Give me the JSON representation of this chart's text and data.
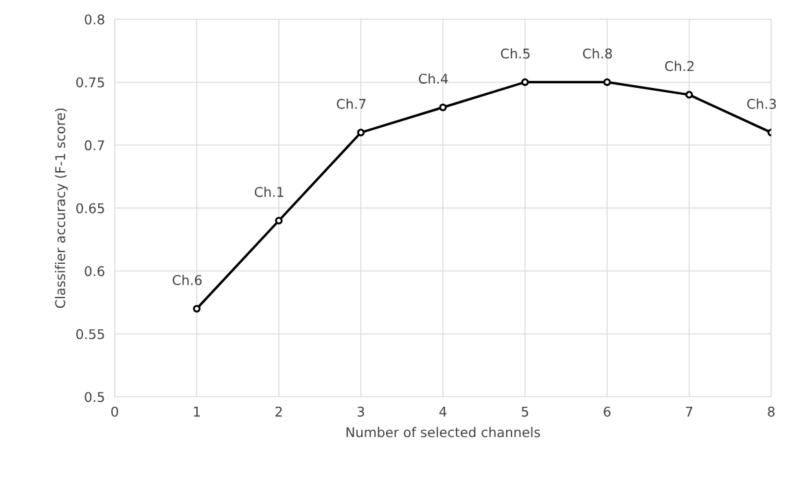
{
  "chart_data": {
    "type": "line",
    "xlabel": "Number of selected channels",
    "ylabel": "Classifier accuracy (F-1 score)",
    "x": [
      1,
      2,
      3,
      4,
      5,
      6,
      7,
      8
    ],
    "series": [
      {
        "color": "#000000",
        "values": [
          0.57,
          0.64,
          0.71,
          0.73,
          0.75,
          0.75,
          0.74,
          0.71
        ]
      }
    ],
    "xlim": [
      0,
      8
    ],
    "xticks": [
      0,
      1,
      2,
      3,
      4,
      5,
      6,
      7,
      8
    ],
    "ylim": [
      0.5,
      0.8
    ],
    "yticks": [
      0.5,
      0.55,
      0.6,
      0.65,
      0.7,
      0.75,
      0.8
    ],
    "grid": true,
    "marker": "circle",
    "line_style": "solid",
    "annotations": [
      {
        "text": "Ch.6",
        "x": 1,
        "y": 0.57
      },
      {
        "text": "Ch.1",
        "x": 2,
        "y": 0.64
      },
      {
        "text": "Ch.7",
        "x": 3,
        "y": 0.71
      },
      {
        "text": "Ch.4",
        "x": 4,
        "y": 0.73
      },
      {
        "text": "Ch.5",
        "x": 5,
        "y": 0.75
      },
      {
        "text": "Ch.8",
        "x": 6,
        "y": 0.75
      },
      {
        "text": "Ch.2",
        "x": 7,
        "y": 0.74
      },
      {
        "text": "Ch.3",
        "x": 8,
        "y": 0.71
      }
    ]
  }
}
